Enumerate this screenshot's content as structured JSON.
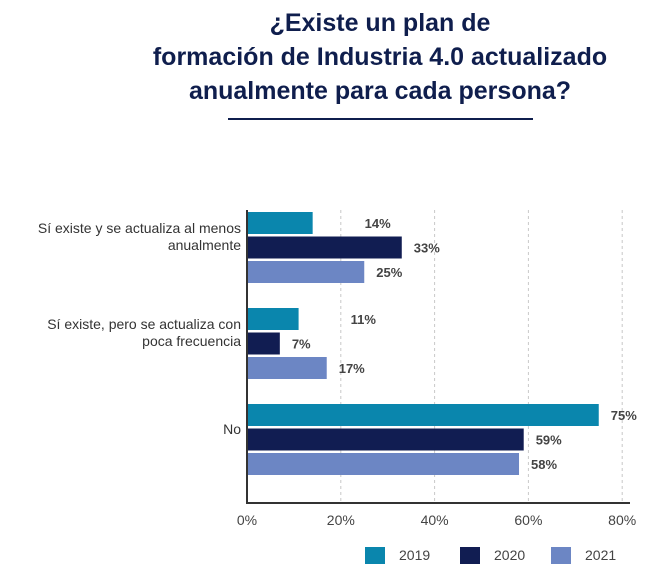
{
  "chart_data": {
    "type": "bar",
    "orientation": "horizontal",
    "title_lines": [
      "¿Existe un plan de",
      "formación de Industria 4.0 actualizado",
      "anualmente para cada persona?"
    ],
    "categories": [
      [
        "Sí existe y se actualiza al menos",
        "anualmente"
      ],
      [
        "Sí existe, pero se actualiza con",
        "poca frecuencia"
      ],
      [
        "No"
      ]
    ],
    "series": [
      {
        "name": "2019",
        "color": "#0a86ad",
        "values": [
          14,
          11,
          75
        ],
        "labels": [
          "14%",
          "11%",
          "75%"
        ]
      },
      {
        "name": "2020",
        "color": "#111d52",
        "values": [
          33,
          7,
          59
        ],
        "labels": [
          "33%",
          "7%",
          "59%"
        ]
      },
      {
        "name": "2021",
        "color": "#6c86c4",
        "values": [
          25,
          17,
          58
        ],
        "labels": [
          "25%",
          "17%",
          "58%"
        ]
      }
    ],
    "xlim": [
      0,
      80
    ],
    "xticks": [
      0,
      20,
      40,
      60,
      80
    ],
    "xtick_labels": [
      "0%",
      "20%",
      "40%",
      "60%",
      "80%"
    ],
    "grid": true,
    "legend_position": "bottom"
  }
}
